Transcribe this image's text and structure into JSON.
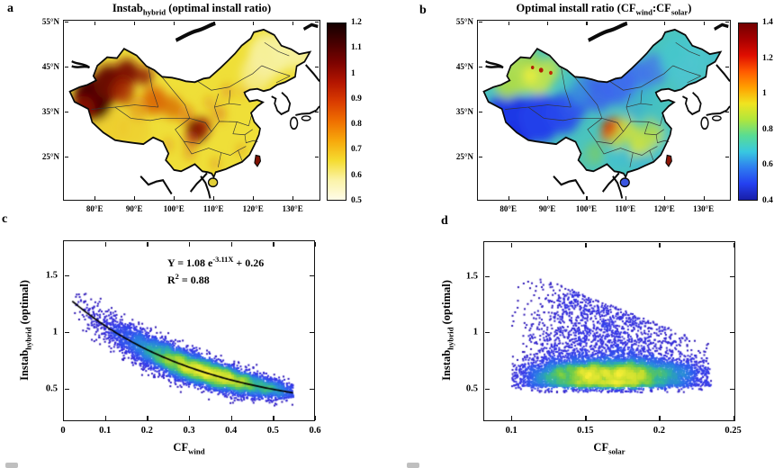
{
  "figure": {
    "panels": {
      "a": {
        "letter": "a",
        "title": {
          "pre": "Instab",
          "sub": "hybrid",
          "post": " (optimal install ratio)"
        }
      },
      "b": {
        "letter": "b",
        "title": {
          "pre": "Optimal install ratio (CF",
          "sub1": "wind",
          "mid": ":CF",
          "sub2": "solar",
          "post": ")"
        }
      },
      "c": {
        "letter": "c",
        "equation": {
          "lhs": "Y = 1.08 e",
          "sup": "-3.11X",
          "rhs": " + 0.26",
          "r2_base": "R",
          "r2_sup": "2",
          "r2_rest": " = 0.88"
        },
        "xlabel": {
          "pre": "CF",
          "sub": "wind"
        },
        "ylabel": {
          "pre": "Instab",
          "sub": "hybrid",
          "post": " (optimal)"
        }
      },
      "d": {
        "letter": "d",
        "xlabel": {
          "pre": "CF",
          "sub": "solar"
        },
        "ylabel": {
          "pre": "Instab",
          "sub": "hybrid",
          "post": " (optimal)"
        }
      }
    }
  },
  "colormaps": {
    "hot_reversed_top_to_bottom": [
      "#140000",
      "#470000",
      "#7c0300",
      "#b31500",
      "#da3c00",
      "#ef7000",
      "#f7a90c",
      "#f5dc30",
      "#fbf3a8",
      "#fffce8"
    ],
    "jet_top_to_bottom": [
      "#730000",
      "#a80000",
      "#e00e00",
      "#ff5a00",
      "#ffa000",
      "#f0e420",
      "#b0e63c",
      "#58dc94",
      "#38c8e0",
      "#2e7cf0",
      "#2440f0",
      "#181ea8"
    ],
    "density_low_to_high": [
      "#2a0da0",
      "#3122cc",
      "#3538e8",
      "#2f5cee",
      "#2a84e0",
      "#2fb2a4",
      "#66ca50",
      "#c4de30",
      "#f6ee38"
    ]
  },
  "chart_data": [
    {
      "id": "a",
      "type": "heatmap",
      "region": "China map",
      "title": "Instab_hybrid (optimal install ratio)",
      "lon_range": [
        72,
        137
      ],
      "lat_range": [
        15.2,
        55.4
      ],
      "x_ticks": {
        "values": [
          80,
          90,
          100,
          110,
          120,
          130
        ],
        "labels": [
          "80°E",
          "90°E",
          "100°E",
          "110°E",
          "120°E",
          "130°E"
        ]
      },
      "y_ticks": {
        "values": [
          55,
          45,
          35,
          25
        ],
        "labels": [
          "55°N",
          "45°N",
          "35°N",
          "25°N"
        ]
      },
      "colorbar": {
        "range": [
          0.5,
          1.2
        ],
        "tick_values": [
          1.2,
          1.1,
          1,
          0.9,
          0.8,
          0.7,
          0.6,
          0.5
        ],
        "tick_labels": [
          "1.2",
          "1.1",
          "1",
          "0.9",
          "0.8",
          "0.7",
          "0.6",
          "0.5"
        ],
        "colormap": "hot_reversed_top_to_bottom"
      },
      "region_values": {
        "east_and_northeast_china": "0.55-0.65",
        "tibetan_plateau": "0.6-0.75",
        "xinjiang_mountain_west": "1.0-1.2",
        "central_orange_belt": "0.8-0.9",
        "sichuan_basin": "0.95-1.15",
        "taiwan": "0.9-1.0"
      }
    },
    {
      "id": "b",
      "type": "heatmap",
      "region": "China map",
      "title": "Optimal install ratio (CF_wind:CF_solar)",
      "lon_range": [
        72,
        137
      ],
      "lat_range": [
        15.2,
        55.4
      ],
      "x_ticks": {
        "values": [
          80,
          90,
          100,
          110,
          120,
          130
        ],
        "labels": [
          "80°E",
          "90°E",
          "100°E",
          "110°E",
          "120°E",
          "130°E"
        ]
      },
      "y_ticks": {
        "values": [
          55,
          45,
          35,
          25
        ],
        "labels": [
          "55°N",
          "45°N",
          "35°N",
          "25°N"
        ]
      },
      "colorbar": {
        "range": [
          0.4,
          1.4
        ],
        "tick_values": [
          1.4,
          1.2,
          1,
          0.8,
          0.6,
          0.4
        ],
        "tick_labels": [
          "1.4",
          "1.2",
          "1",
          "0.8",
          "0.6",
          "0.4"
        ],
        "colormap": "jet_top_to_bottom"
      },
      "region_values": {
        "tibetan_plateau": "0.5-0.6",
        "north_and_inner_mongolia": "0.6-0.7",
        "northeast_china": "0.75-0.85",
        "xinjiang": "0.95-1.05",
        "sichuan_basin": "1.2-1.3",
        "southeast_china": "0.9-1.0",
        "south_coast": "0.8",
        "taiwan": "1.35",
        "hainan": "0.55"
      }
    },
    {
      "id": "c",
      "type": "scatter-density",
      "xlabel": "CF_wind",
      "ylabel": "Instab_hybrid (optimal)",
      "xlim": [
        0,
        0.6
      ],
      "ylim": [
        0.21,
        1.81
      ],
      "x_ticks": {
        "values": [
          0,
          0.1,
          0.2,
          0.3,
          0.4,
          0.5,
          0.6
        ],
        "labels": [
          "0",
          "0.1",
          "0.2",
          "0.3",
          "0.4",
          "0.5",
          "0.6"
        ]
      },
      "y_ticks": {
        "values": [
          0.5,
          1,
          1.5
        ],
        "labels": [
          "0.5",
          "1",
          "1.5"
        ]
      },
      "fit": {
        "equation": "Y = 1.08 e^(-3.11X) + 0.26",
        "a": 1.08,
        "b": -3.11,
        "c": 0.26,
        "r_squared": 0.88,
        "x_range": [
          0.02,
          0.55
        ]
      },
      "cloud": {
        "n": 9000,
        "x_mean": 0.33,
        "x_sd": 0.11,
        "x_min": 0.02,
        "x_max": 0.55,
        "sigma0": 0.095,
        "sigma1": 0.045,
        "densest_point": [
          0.35,
          0.6
        ],
        "y_at_left_edge": 1.3,
        "y_at_right_edge": 0.47
      }
    },
    {
      "id": "d",
      "type": "scatter-density",
      "xlabel": "CF_solar",
      "ylabel": "Instab_hybrid (optimal)",
      "xlim": [
        0.081,
        0.2515
      ],
      "ylim": [
        0.21,
        1.81
      ],
      "x_ticks": {
        "values": [
          0.1,
          0.15,
          0.2,
          0.25
        ],
        "labels": [
          "0.1",
          "0.15",
          "0.2",
          "0.25"
        ]
      },
      "y_ticks": {
        "values": [
          0.5,
          1,
          1.5
        ],
        "labels": [
          "0.5",
          "1",
          "1.5"
        ]
      },
      "cloud": {
        "n": 10000,
        "x_range": [
          0.1,
          0.236
        ],
        "y_range": [
          0.46,
          1.45
        ],
        "modes_xy": [
          [
            0.162,
            0.625
          ],
          [
            0.191,
            0.68
          ],
          [
            0.133,
            0.64
          ]
        ],
        "densest_point": [
          0.16,
          0.58
        ],
        "upper_envelope": "1.48 at x=0.12 falling to ~0.95 at x=0.235"
      }
    }
  ]
}
